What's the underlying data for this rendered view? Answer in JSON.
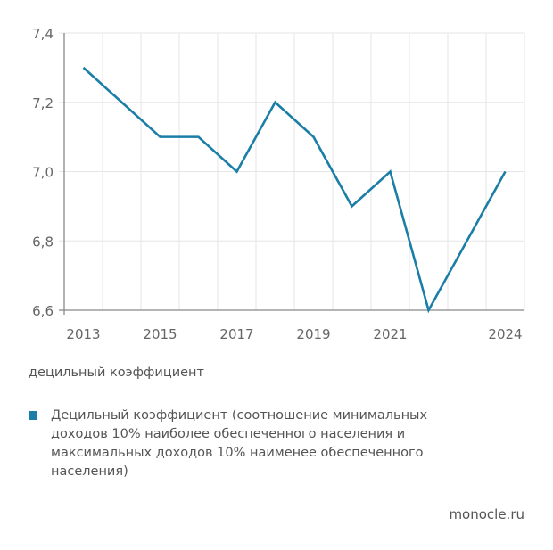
{
  "chart_data": {
    "type": "line",
    "x": [
      2013,
      2014,
      2015,
      2016,
      2017,
      2018,
      2019,
      2020,
      2021,
      2022,
      2023,
      2024
    ],
    "series": [
      {
        "name": "Децильный коэффициент (соотношение минимальных доходов 10% наиболее обеспеченного населения и максимальных доходов 10% наименее обеспеченного населения)",
        "values": [
          7.3,
          7.2,
          7.1,
          7.1,
          7.0,
          7.2,
          7.1,
          6.9,
          7.0,
          6.6,
          6.8,
          7.0
        ],
        "color": "#1b7ea6"
      }
    ],
    "xticks": [
      "2013",
      "2015",
      "2017",
      "2019",
      "2021",
      "2024"
    ],
    "yticks": [
      "6,6",
      "6,8",
      "7,0",
      "7,2",
      "7,4"
    ],
    "ylim": [
      6.6,
      7.4
    ],
    "xlim": [
      2012.5,
      2024.5
    ],
    "ylabel": "децильный коэффициент",
    "legend_position": "bottom",
    "grid": true
  },
  "source": "monocle.ru"
}
